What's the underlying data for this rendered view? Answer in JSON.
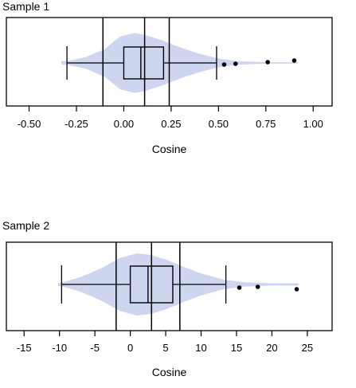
{
  "chart_data": [
    {
      "type": "violin-boxplot",
      "title": "Sample 1",
      "xlabel": "Cosine",
      "xlim": [
        -0.62,
        1.1
      ],
      "xticks": [
        -0.5,
        -0.25,
        0.0,
        0.25,
        0.5,
        0.75,
        1.0
      ],
      "xtick_labels": [
        "-0.50",
        "-0.25",
        "0.00",
        "0.25",
        "0.50",
        "0.75",
        "1.00"
      ],
      "box": {
        "whisker_low": -0.3,
        "q1": 0.0,
        "median": 0.09,
        "q3": 0.21,
        "whisker_high": 0.49
      },
      "reference_lines": [
        -0.11,
        0.11,
        0.24
      ],
      "outliers": [
        0.53,
        0.59,
        0.76,
        0.9
      ],
      "violin": {
        "x": [
          -0.33,
          -0.3,
          -0.2,
          -0.1,
          -0.02,
          0.06,
          0.12,
          0.2,
          0.3,
          0.4,
          0.5,
          0.6,
          0.75,
          0.92
        ],
        "half": [
          0.05,
          0.05,
          0.16,
          0.38,
          0.72,
          0.82,
          0.75,
          0.62,
          0.42,
          0.25,
          0.12,
          0.05,
          0.02,
          0.02
        ]
      },
      "colors": {
        "violin": "#cdd6ee",
        "lines": "#000000",
        "outlier": "#000000"
      }
    },
    {
      "type": "violin-boxplot",
      "title": "Sample 2",
      "xlabel": "Cosine",
      "xlim": [
        -17.5,
        28.5
      ],
      "xticks": [
        -15,
        -10,
        -5,
        0,
        5,
        10,
        15,
        20,
        25
      ],
      "xtick_labels": [
        "-15",
        "-10",
        "-5",
        "0",
        "5",
        "10",
        "15",
        "20",
        "25"
      ],
      "box": {
        "whisker_low": -9.7,
        "q1": 0.0,
        "median": 2.5,
        "q3": 6.0,
        "whisker_high": 13.5
      },
      "reference_lines": [
        -2.0,
        3.0,
        7.0
      ],
      "outliers": [
        15.4,
        18.0,
        23.5
      ],
      "violin": {
        "x": [
          -10.2,
          -9.7,
          -7,
          -4,
          -1.5,
          1,
          3,
          5,
          7.5,
          10,
          13,
          16,
          20,
          23.8
        ],
        "half": [
          0.04,
          0.05,
          0.2,
          0.45,
          0.72,
          0.85,
          0.8,
          0.68,
          0.48,
          0.3,
          0.14,
          0.06,
          0.03,
          0.03
        ]
      },
      "colors": {
        "violin": "#cdd6ee",
        "lines": "#000000",
        "outlier": "#000000"
      }
    }
  ]
}
